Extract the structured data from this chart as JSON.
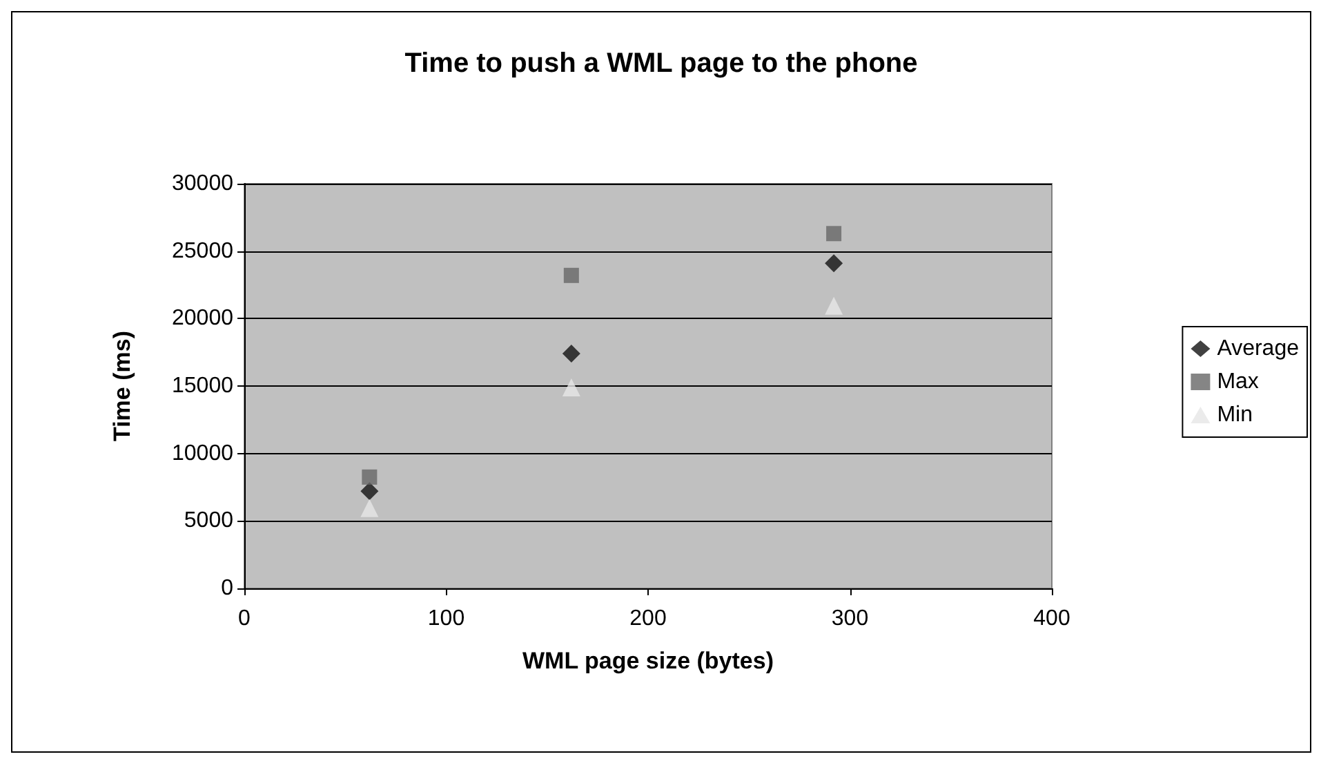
{
  "chart_data": {
    "type": "scatter",
    "title": "Time to push a WML page to the phone",
    "xlabel": "WML page size (bytes)",
    "ylabel": "Time (ms)",
    "xlim": [
      0,
      400
    ],
    "xticks": [
      0,
      100,
      200,
      300,
      400
    ],
    "ylim": [
      0,
      30000
    ],
    "yticks": [
      0,
      5000,
      10000,
      15000,
      20000,
      25000,
      30000
    ],
    "grid": "y",
    "legend": "right",
    "x": [
      62,
      162,
      292
    ],
    "series": [
      {
        "name": "Average",
        "color": "#111111",
        "marker": "diamond",
        "values": [
          7200,
          17400,
          24100
        ]
      },
      {
        "name": "Max",
        "color": "#666666",
        "marker": "square",
        "values": [
          8250,
          23200,
          26300
        ]
      },
      {
        "name": "Min",
        "color": "#e6e6e6",
        "marker": "triangle",
        "values": [
          5950,
          14900,
          20950
        ]
      }
    ]
  }
}
